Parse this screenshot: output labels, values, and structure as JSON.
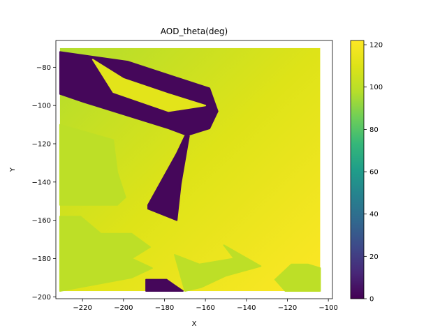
{
  "chart_data": {
    "type": "heatmap",
    "title": "AOD_theta(deg)",
    "xlabel": "X",
    "ylabel": "Y",
    "xlim": [
      -233,
      -98
    ],
    "ylim": [
      -201,
      -66
    ],
    "xticks": [
      -220,
      -200,
      -180,
      -160,
      -140,
      -120,
      -100
    ],
    "yticks": [
      -200,
      -180,
      -160,
      -140,
      -120,
      -100,
      -80
    ],
    "grid": false,
    "marker": "hexagon",
    "colormap": "viridis",
    "colorbar": {
      "range": [
        0,
        122
      ],
      "ticks": [
        0,
        20,
        40,
        60,
        80,
        100,
        120
      ]
    },
    "field": {
      "x_range": [
        -231,
        -104
      ],
      "y_range": [
        -197,
        -70
      ],
      "background_trend": "about 95-100 at upper left rising to about 122 at lower right"
    },
    "regions": [
      {
        "name": "L-shaped low band",
        "value": 2,
        "x": [
          -231,
          -198,
          -158,
          -154,
          -158,
          -170,
          -174,
          -188,
          -188,
          -174,
          -172,
          -168,
          -178,
          -220,
          -231
        ],
        "y": [
          -72,
          -77,
          -91,
          -103,
          -112,
          -116,
          -125,
          -152,
          -154,
          -160,
          -141,
          -116,
          -112,
          -98,
          -94
        ]
      },
      {
        "name": "low patch bottom",
        "value": 2,
        "x": [
          -189,
          -179,
          -175,
          -171,
          -189
        ],
        "y": [
          -191,
          -191,
          -194,
          -197,
          -197
        ]
      },
      {
        "name": "green region left",
        "value": 100,
        "x": [
          -231,
          -205,
          -203,
          -199,
          -203,
          -231
        ],
        "y": [
          -110,
          -118,
          -135,
          -148,
          -152,
          -152
        ]
      },
      {
        "name": "green region lower left",
        "value": 100,
        "x": [
          -231,
          -221,
          -211,
          -196,
          -187,
          -196,
          -186,
          -196,
          -231
        ],
        "y": [
          -158,
          -158,
          -167,
          -167,
          -174,
          -180,
          -185,
          -190,
          -197
        ]
      },
      {
        "name": "green patches lower middle",
        "value": 100,
        "x": [
          -175,
          -163,
          -146,
          -151,
          -133,
          -150,
          -162,
          -170
        ],
        "y": [
          -178,
          -183,
          -180,
          -173,
          -184,
          -189,
          -195,
          -197
        ]
      },
      {
        "name": "green patch lower right",
        "value": 100,
        "x": [
          -118,
          -110,
          -104,
          -104,
          -121,
          -126
        ],
        "y": [
          -183,
          -183,
          -185,
          -197,
          -197,
          -191
        ]
      },
      {
        "name": "yellowish band top",
        "value": 112,
        "x": [
          -215,
          -200,
          -178,
          -160,
          -178,
          -205
        ],
        "y": [
          -76,
          -86,
          -94,
          -100,
          -103,
          -93
        ]
      }
    ]
  }
}
